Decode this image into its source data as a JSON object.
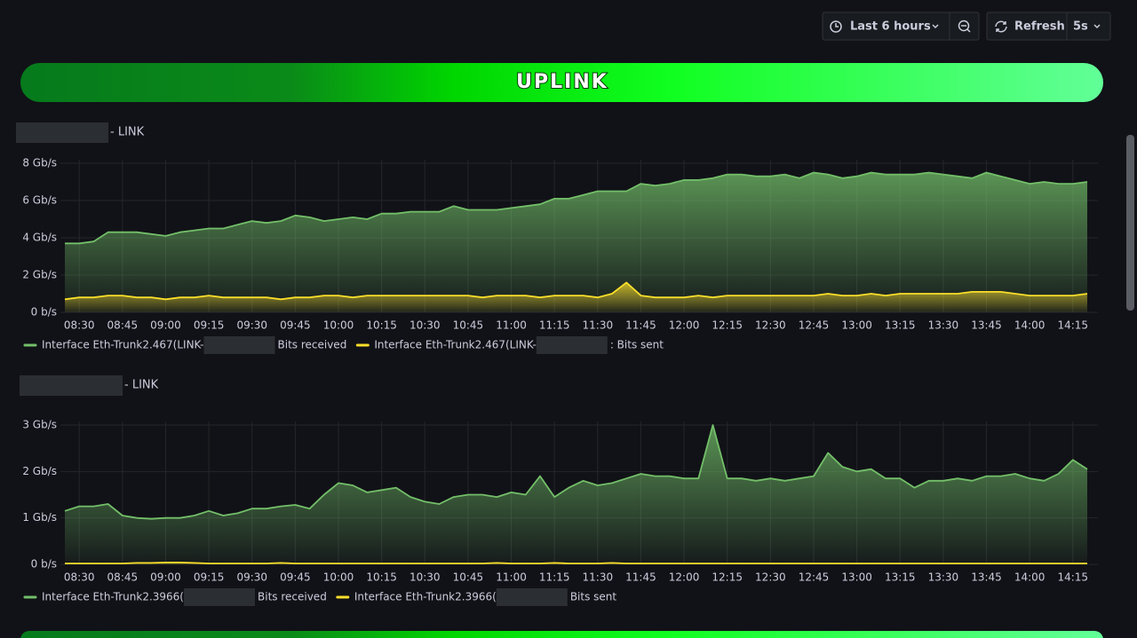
{
  "toolbar": {
    "time_range": "Last 6 hours",
    "refresh": "Refresh",
    "interval": "5s"
  },
  "header": {
    "title": "UPLINK"
  },
  "chart_data": [
    {
      "type": "area",
      "title": "- LINK",
      "x": [
        "08:25",
        "08:30",
        "08:35",
        "08:40",
        "08:45",
        "08:50",
        "08:55",
        "09:00",
        "09:05",
        "09:10",
        "09:15",
        "09:20",
        "09:25",
        "09:30",
        "09:35",
        "09:40",
        "09:45",
        "09:50",
        "09:55",
        "10:00",
        "10:05",
        "10:10",
        "10:15",
        "10:20",
        "10:25",
        "10:30",
        "10:35",
        "10:40",
        "10:45",
        "10:50",
        "10:55",
        "11:00",
        "11:05",
        "11:10",
        "11:15",
        "11:20",
        "11:25",
        "11:30",
        "11:35",
        "11:40",
        "11:45",
        "11:50",
        "11:55",
        "12:00",
        "12:05",
        "12:10",
        "12:15",
        "12:20",
        "12:25",
        "12:30",
        "12:35",
        "12:40",
        "12:45",
        "12:50",
        "12:55",
        "13:00",
        "13:05",
        "13:10",
        "13:15",
        "13:20",
        "13:25",
        "13:30",
        "13:35",
        "13:40",
        "13:45",
        "13:50",
        "13:55",
        "14:00",
        "14:05",
        "14:10",
        "14:15",
        "14:20"
      ],
      "xticks": [
        "08:30",
        "08:45",
        "09:00",
        "09:15",
        "09:30",
        "09:45",
        "10:00",
        "10:15",
        "10:30",
        "10:45",
        "11:00",
        "11:15",
        "11:30",
        "11:45",
        "12:00",
        "12:15",
        "12:30",
        "12:45",
        "13:00",
        "13:15",
        "13:30",
        "13:45",
        "14:00",
        "14:15"
      ],
      "ylim": [
        0,
        8
      ],
      "yticks": [
        {
          "value": 0,
          "label": "0 b/s"
        },
        {
          "value": 2,
          "label": "2 Gb/s"
        },
        {
          "value": 4,
          "label": "4 Gb/s"
        },
        {
          "value": 6,
          "label": "6 Gb/s"
        },
        {
          "value": 8,
          "label": "8 Gb/s"
        }
      ],
      "grid": true,
      "series": [
        {
          "name": [
            "Interface Eth-Trunk2.467(LINK-",
            "Bits received"
          ],
          "color": "#73bf69",
          "fill": true,
          "values": [
            3.7,
            3.7,
            3.8,
            4.3,
            4.3,
            4.3,
            4.2,
            4.1,
            4.3,
            4.4,
            4.5,
            4.5,
            4.7,
            4.9,
            4.8,
            4.9,
            5.2,
            5.1,
            4.9,
            5.0,
            5.1,
            5.0,
            5.3,
            5.3,
            5.4,
            5.4,
            5.4,
            5.7,
            5.5,
            5.5,
            5.5,
            5.6,
            5.7,
            5.8,
            6.1,
            6.1,
            6.3,
            6.5,
            6.5,
            6.5,
            6.9,
            6.8,
            6.9,
            7.1,
            7.1,
            7.2,
            7.4,
            7.4,
            7.3,
            7.3,
            7.4,
            7.2,
            7.5,
            7.4,
            7.2,
            7.3,
            7.5,
            7.4,
            7.4,
            7.4,
            7.5,
            7.4,
            7.3,
            7.2,
            7.5,
            7.3,
            7.1,
            6.9,
            7.0,
            6.9,
            6.9,
            7.0
          ]
        },
        {
          "name": [
            "Interface Eth-Trunk2.467(LINK-",
            ": Bits sent"
          ],
          "color": "#fade2a",
          "fill": true,
          "values": [
            0.7,
            0.8,
            0.8,
            0.9,
            0.9,
            0.8,
            0.8,
            0.7,
            0.8,
            0.8,
            0.9,
            0.8,
            0.8,
            0.8,
            0.8,
            0.7,
            0.8,
            0.8,
            0.9,
            0.9,
            0.8,
            0.9,
            0.9,
            0.9,
            0.9,
            0.9,
            0.9,
            0.9,
            0.9,
            0.8,
            0.9,
            0.9,
            0.9,
            0.8,
            0.9,
            0.9,
            0.9,
            0.8,
            1.0,
            1.6,
            0.9,
            0.8,
            0.8,
            0.8,
            0.9,
            0.8,
            0.9,
            0.9,
            0.9,
            0.9,
            0.9,
            0.9,
            0.9,
            1.0,
            0.9,
            0.9,
            1.0,
            0.9,
            1.0,
            1.0,
            1.0,
            1.0,
            1.0,
            1.1,
            1.1,
            1.1,
            1.0,
            0.9,
            0.9,
            0.9,
            0.9,
            1.0
          ]
        }
      ]
    },
    {
      "type": "area",
      "title": "- LINK",
      "x": [
        "08:25",
        "08:30",
        "08:35",
        "08:40",
        "08:45",
        "08:50",
        "08:55",
        "09:00",
        "09:05",
        "09:10",
        "09:15",
        "09:20",
        "09:25",
        "09:30",
        "09:35",
        "09:40",
        "09:45",
        "09:50",
        "09:55",
        "10:00",
        "10:05",
        "10:10",
        "10:15",
        "10:20",
        "10:25",
        "10:30",
        "10:35",
        "10:40",
        "10:45",
        "10:50",
        "10:55",
        "11:00",
        "11:05",
        "11:10",
        "11:15",
        "11:20",
        "11:25",
        "11:30",
        "11:35",
        "11:40",
        "11:45",
        "11:50",
        "11:55",
        "12:00",
        "12:05",
        "12:10",
        "12:15",
        "12:20",
        "12:25",
        "12:30",
        "12:35",
        "12:40",
        "12:45",
        "12:50",
        "12:55",
        "13:00",
        "13:05",
        "13:10",
        "13:15",
        "13:20",
        "13:25",
        "13:30",
        "13:35",
        "13:40",
        "13:45",
        "13:50",
        "13:55",
        "14:00",
        "14:05",
        "14:10",
        "14:15",
        "14:20"
      ],
      "xticks": [
        "08:30",
        "08:45",
        "09:00",
        "09:15",
        "09:30",
        "09:45",
        "10:00",
        "10:15",
        "10:30",
        "10:45",
        "11:00",
        "11:15",
        "11:30",
        "11:45",
        "12:00",
        "12:15",
        "12:30",
        "12:45",
        "13:00",
        "13:15",
        "13:30",
        "13:45",
        "14:00",
        "14:15"
      ],
      "ylim": [
        0,
        3
      ],
      "yticks": [
        {
          "value": 0,
          "label": "0 b/s"
        },
        {
          "value": 1,
          "label": "1 Gb/s"
        },
        {
          "value": 2,
          "label": "2 Gb/s"
        },
        {
          "value": 3,
          "label": "3 Gb/s"
        }
      ],
      "grid": true,
      "series": [
        {
          "name": [
            "Interface Eth-Trunk2.3966(",
            "Bits received"
          ],
          "color": "#73bf69",
          "fill": true,
          "values": [
            1.15,
            1.25,
            1.25,
            1.3,
            1.05,
            1.0,
            0.98,
            1.0,
            1.0,
            1.05,
            1.15,
            1.05,
            1.1,
            1.2,
            1.2,
            1.25,
            1.28,
            1.2,
            1.5,
            1.75,
            1.7,
            1.55,
            1.6,
            1.65,
            1.45,
            1.35,
            1.3,
            1.45,
            1.5,
            1.5,
            1.45,
            1.55,
            1.5,
            1.9,
            1.45,
            1.65,
            1.8,
            1.7,
            1.75,
            1.85,
            1.95,
            1.9,
            1.9,
            1.85,
            1.85,
            3.0,
            1.85,
            1.85,
            1.8,
            1.85,
            1.8,
            1.85,
            1.9,
            2.4,
            2.1,
            2.0,
            2.05,
            1.85,
            1.85,
            1.65,
            1.8,
            1.8,
            1.85,
            1.8,
            1.9,
            1.9,
            1.95,
            1.85,
            1.8,
            1.95,
            2.25,
            2.05
          ]
        },
        {
          "name": [
            "Interface Eth-Trunk2.3966(",
            "Bits sent"
          ],
          "color": "#fade2a",
          "fill": true,
          "values": [
            0.02,
            0.02,
            0.02,
            0.02,
            0.02,
            0.03,
            0.03,
            0.04,
            0.04,
            0.03,
            0.02,
            0.02,
            0.02,
            0.02,
            0.02,
            0.03,
            0.02,
            0.02,
            0.02,
            0.02,
            0.02,
            0.02,
            0.02,
            0.02,
            0.02,
            0.02,
            0.02,
            0.02,
            0.02,
            0.02,
            0.03,
            0.02,
            0.02,
            0.02,
            0.03,
            0.02,
            0.02,
            0.02,
            0.03,
            0.02,
            0.02,
            0.02,
            0.02,
            0.02,
            0.02,
            0.02,
            0.02,
            0.02,
            0.02,
            0.02,
            0.02,
            0.02,
            0.02,
            0.02,
            0.02,
            0.02,
            0.02,
            0.02,
            0.02,
            0.02,
            0.02,
            0.02,
            0.02,
            0.02,
            0.02,
            0.02,
            0.02,
            0.02,
            0.02,
            0.02,
            0.02,
            0.02
          ]
        }
      ]
    }
  ]
}
